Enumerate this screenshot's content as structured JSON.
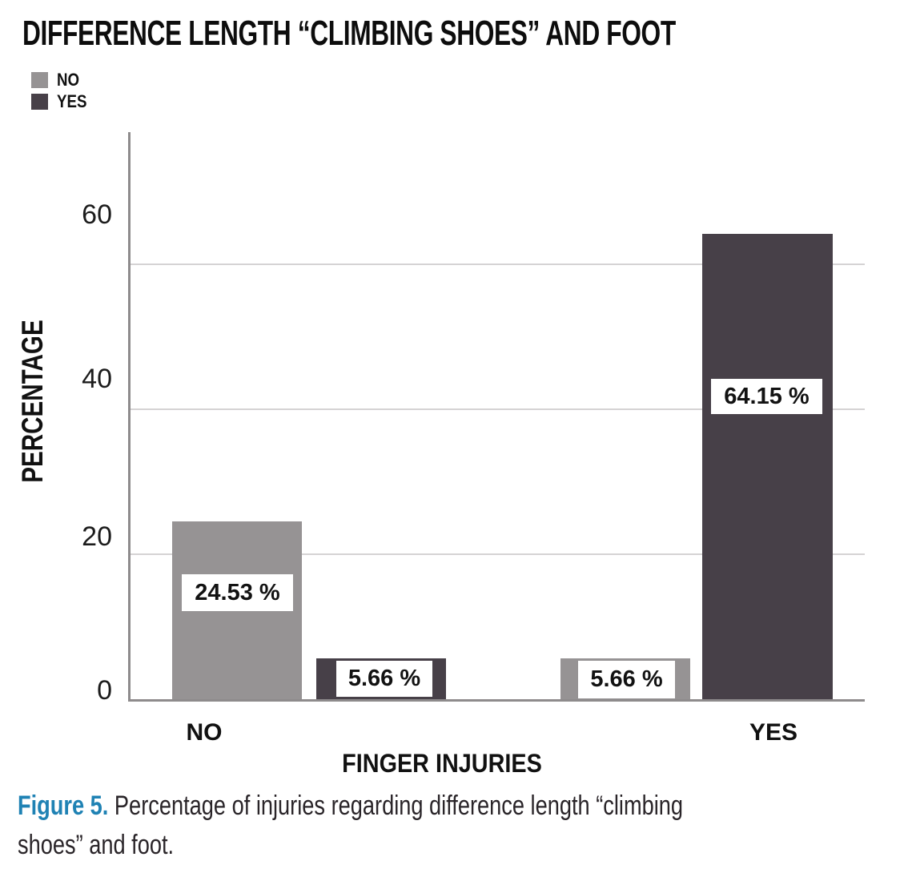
{
  "chart_data": {
    "type": "bar",
    "title": "DIFFERENCE LENGTH “CLIMBING SHOES” AND FOOT",
    "xlabel": "FINGER INJURIES",
    "ylabel": "PERCENTAGE",
    "categories": [
      "NO",
      "YES"
    ],
    "series": [
      {
        "name": "NO",
        "color": "#969394",
        "values": [
          24.53,
          5.66
        ]
      },
      {
        "name": "YES",
        "color": "#474048",
        "values": [
          5.66,
          64.15
        ]
      }
    ],
    "bar_labels": [
      "24.53 %",
      "5.66 %",
      "5.66 %",
      "64.15 %"
    ],
    "yticks": [
      "0",
      "20",
      "40",
      "60"
    ],
    "ylim": [
      0,
      78.2
    ],
    "grid": "horizontal at 20/40/60",
    "legend_position": "top-left"
  },
  "caption": {
    "prefix": "Figure 5.",
    "line1": " Percentage of injuries regarding difference length “climbing",
    "line2": "shoes” and foot."
  }
}
